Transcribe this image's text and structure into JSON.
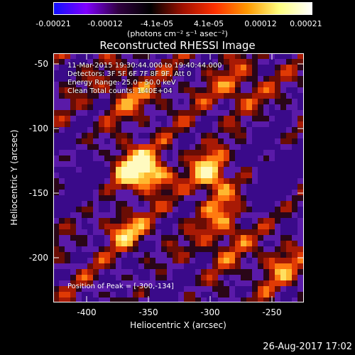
{
  "colorbar": {
    "ticks": [
      "-0.00021",
      "-0.00012",
      "-4.1e-05",
      "4.1e-05",
      "0.00012",
      "0.00021"
    ],
    "unit": "(photons cm⁻² s⁻¹ asec⁻²)",
    "colors": [
      "#1010ff",
      "#8000ff",
      "#300040",
      "#000000",
      "#a01000",
      "#ff3000",
      "#ff9900",
      "#ffff80",
      "#ffffff"
    ]
  },
  "title": "Reconstructed RHESSI Image",
  "info": {
    "line1": "11-Mar-2015 19:30:44.000 to 19:40:44.000",
    "line2": "Detectors: 3F 5F 6F 7F 8F 9F, Att 0",
    "line3": "Energy Range: 25.0 - 50.0 keV",
    "line4": "Clean     Total counts: 1.40E+04"
  },
  "peak": "Position of Peak = [-300,-134]",
  "axes": {
    "xlabel": "Heliocentric X (arcsec)",
    "ylabel": "Heliocentric Y (arcsec)",
    "xticks": [
      "-400",
      "-350",
      "-300",
      "-250"
    ],
    "yticks": [
      "-50",
      "-100",
      "-150",
      "-200"
    ]
  },
  "timestamp": "26-Aug-2017 17:02"
}
